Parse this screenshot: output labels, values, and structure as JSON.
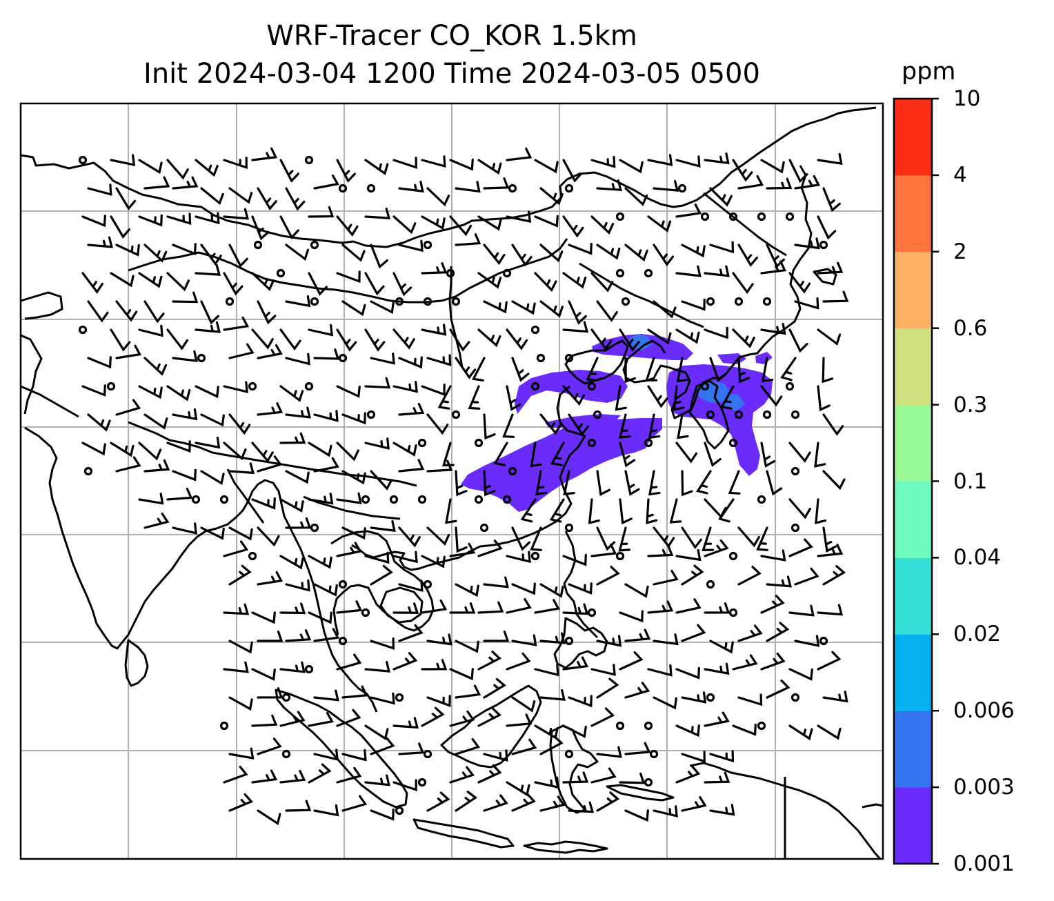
{
  "title_line1": "WRF-Tracer CO_KOR 1.5km",
  "title_line2": "Init 2024-03-04 1200 Time 2024-03-05 0500",
  "colorbar": {
    "unit": "ppm",
    "levels": [
      "0.001",
      "0.003",
      "0.006",
      "0.02",
      "0.04",
      "0.1",
      "0.3",
      "0.6",
      "2",
      "4",
      "10"
    ],
    "colors": [
      "#6a2cfb",
      "#3574f0",
      "#05b1ee",
      "#34e0d5",
      "#6dfbc0",
      "#98f996",
      "#d1e182",
      "#feb264",
      "#fe763c",
      "#fd2d16"
    ]
  },
  "map": {
    "variable": "CO_KOR tracer concentration",
    "gridline_color": "#b0b0b0",
    "coastline_color": "#000000"
  }
}
